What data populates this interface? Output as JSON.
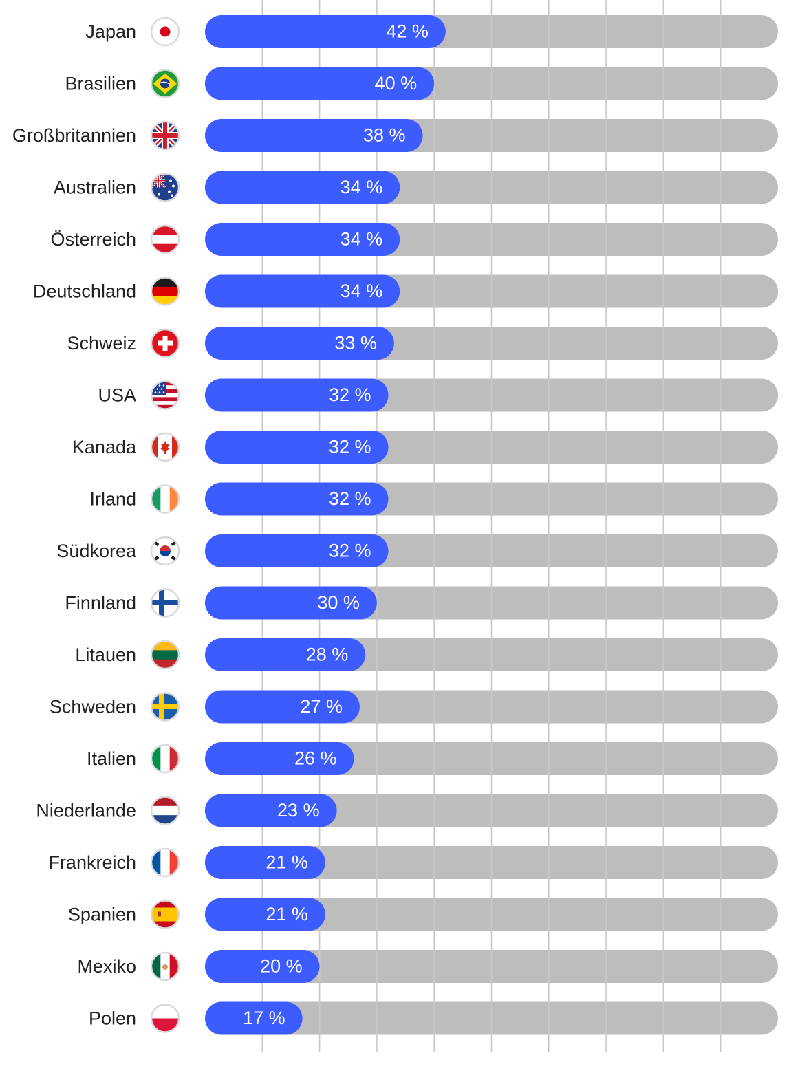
{
  "chart_data": {
    "type": "bar",
    "orientation": "horizontal",
    "value_suffix": " %",
    "xlim": [
      0,
      100
    ],
    "grid": true,
    "categories": [
      "Japan",
      "Brasilien",
      "Großbritannien",
      "Australien",
      "Österreich",
      "Deutschland",
      "Schweiz",
      "USA",
      "Kanada",
      "Irland",
      "Südkorea",
      "Finnland",
      "Litauen",
      "Schweden",
      "Italien",
      "Niederlande",
      "Frankreich",
      "Spanien",
      "Mexiko",
      "Polen"
    ],
    "values": [
      42,
      40,
      38,
      34,
      34,
      34,
      33,
      32,
      32,
      32,
      32,
      30,
      28,
      27,
      26,
      23,
      21,
      21,
      20,
      17
    ],
    "flags": [
      "japan-flag-icon",
      "brazil-flag-icon",
      "uk-flag-icon",
      "australia-flag-icon",
      "austria-flag-icon",
      "germany-flag-icon",
      "switzerland-flag-icon",
      "usa-flag-icon",
      "canada-flag-icon",
      "ireland-flag-icon",
      "south-korea-flag-icon",
      "finland-flag-icon",
      "lithuania-flag-icon",
      "sweden-flag-icon",
      "italy-flag-icon",
      "netherlands-flag-icon",
      "france-flag-icon",
      "spain-flag-icon",
      "mexico-flag-icon",
      "poland-flag-icon"
    ],
    "colors": {
      "bar": "#3d5cff",
      "track": "#bdbdbd",
      "grid": "#c8c8c8",
      "label": "#222222",
      "value_text": "#ffffff"
    }
  }
}
